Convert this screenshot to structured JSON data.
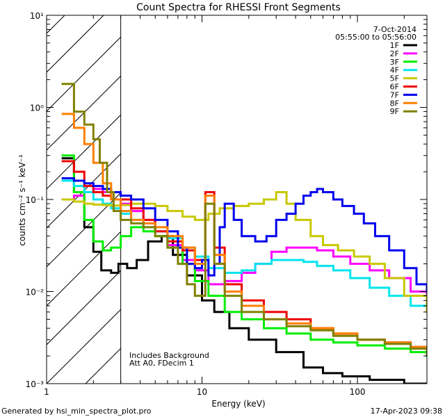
{
  "chart_data": {
    "type": "line",
    "title": "Count Spectra for RHESSI Front Segments",
    "xlabel": "Energy (keV)",
    "ylabel": "counts cm⁻² s⁻¹ keV⁻¹",
    "xscale": "log",
    "yscale": "log",
    "xlim": [
      1,
      280
    ],
    "ylim": [
      0.001,
      10
    ],
    "x_ticks": [
      {
        "value": 1,
        "label": "1"
      },
      {
        "value": 10,
        "label": "10"
      },
      {
        "value": 100,
        "label": "100"
      }
    ],
    "y_ticks": [
      {
        "value": 0.001,
        "label": "10⁻³"
      },
      {
        "value": 0.01,
        "label": "10⁻²"
      },
      {
        "value": 0.1,
        "label": "10⁻¹"
      },
      {
        "value": 1,
        "label": "10⁰"
      },
      {
        "value": 10,
        "label": "10¹"
      }
    ],
    "hatched_region_keV": [
      1,
      3
    ],
    "date": "7-Oct-2014",
    "time_range": "05:55:00 to 05:56:00",
    "annotation_lines": [
      "Includes Background",
      "Att A0, FDecim 1"
    ],
    "legend_position": "top-right",
    "series": [
      {
        "name": "1F",
        "color": "#000000",
        "points": [
          [
            1.25,
            0.28
          ],
          [
            1.5,
            0.12
          ],
          [
            1.75,
            0.05
          ],
          [
            2,
            0.027
          ],
          [
            2.25,
            0.017
          ],
          [
            2.6,
            0.016
          ],
          [
            2.9,
            0.02
          ],
          [
            3.3,
            0.018
          ],
          [
            3.8,
            0.022
          ],
          [
            4.5,
            0.035
          ],
          [
            5.5,
            0.04
          ],
          [
            6.5,
            0.025
          ],
          [
            8,
            0.015
          ],
          [
            10,
            0.008
          ],
          [
            12,
            0.006
          ],
          [
            15,
            0.004
          ],
          [
            20,
            0.003
          ],
          [
            30,
            0.0022
          ],
          [
            45,
            0.0015
          ],
          [
            60,
            0.0013
          ],
          [
            80,
            0.0012
          ],
          [
            120,
            0.0011
          ],
          [
            200,
            0.001
          ],
          [
            280,
            0.001
          ]
        ]
      },
      {
        "name": "2F",
        "color": "#ff00ff",
        "points": [
          [
            1.25,
            0.1
          ],
          [
            1.5,
            0.11
          ],
          [
            1.75,
            0.12
          ],
          [
            2,
            0.13
          ],
          [
            2.3,
            0.12
          ],
          [
            2.6,
            0.1
          ],
          [
            3,
            0.09
          ],
          [
            3.5,
            0.075
          ],
          [
            4.2,
            0.06
          ],
          [
            5,
            0.045
          ],
          [
            6,
            0.032
          ],
          [
            7.5,
            0.022
          ],
          [
            9,
            0.017
          ],
          [
            11,
            0.012
          ],
          [
            14,
            0.013
          ],
          [
            18,
            0.016
          ],
          [
            22,
            0.02
          ],
          [
            28,
            0.027
          ],
          [
            35,
            0.03
          ],
          [
            45,
            0.03
          ],
          [
            55,
            0.028
          ],
          [
            70,
            0.024
          ],
          [
            90,
            0.02
          ],
          [
            120,
            0.017
          ],
          [
            160,
            0.014
          ],
          [
            220,
            0.01
          ],
          [
            280,
            0.008
          ]
        ]
      },
      {
        "name": "3F",
        "color": "#00ee00",
        "points": [
          [
            1.25,
            0.3
          ],
          [
            1.5,
            0.12
          ],
          [
            1.75,
            0.06
          ],
          [
            2,
            0.035
          ],
          [
            2.3,
            0.028
          ],
          [
            2.6,
            0.03
          ],
          [
            3,
            0.04
          ],
          [
            3.5,
            0.05
          ],
          [
            4.2,
            0.045
          ],
          [
            5,
            0.04
          ],
          [
            6,
            0.03
          ],
          [
            7.5,
            0.02
          ],
          [
            9,
            0.013
          ],
          [
            11,
            0.009
          ],
          [
            14,
            0.006
          ],
          [
            18,
            0.005
          ],
          [
            25,
            0.004
          ],
          [
            35,
            0.0035
          ],
          [
            50,
            0.003
          ],
          [
            70,
            0.0028
          ],
          [
            100,
            0.0026
          ],
          [
            150,
            0.0024
          ],
          [
            220,
            0.0022
          ],
          [
            280,
            0.002
          ]
        ]
      },
      {
        "name": "4F",
        "color": "#00e5ee",
        "points": [
          [
            1.25,
            0.16
          ],
          [
            1.5,
            0.14
          ],
          [
            1.75,
            0.12
          ],
          [
            2,
            0.1
          ],
          [
            2.3,
            0.09
          ],
          [
            2.6,
            0.08
          ],
          [
            3,
            0.07
          ],
          [
            3.5,
            0.06
          ],
          [
            4.2,
            0.05
          ],
          [
            5,
            0.045
          ],
          [
            6,
            0.038
          ],
          [
            7.5,
            0.03
          ],
          [
            9,
            0.024
          ],
          [
            11,
            0.018
          ],
          [
            14,
            0.016
          ],
          [
            18,
            0.017
          ],
          [
            22,
            0.02
          ],
          [
            28,
            0.022
          ],
          [
            35,
            0.022
          ],
          [
            45,
            0.021
          ],
          [
            55,
            0.019
          ],
          [
            70,
            0.017
          ],
          [
            90,
            0.014
          ],
          [
            120,
            0.011
          ],
          [
            160,
            0.009
          ],
          [
            220,
            0.007
          ],
          [
            280,
            0.006
          ]
        ]
      },
      {
        "name": "5F",
        "color": "#c8c800",
        "points": [
          [
            1.25,
            0.1
          ],
          [
            1.5,
            0.095
          ],
          [
            1.75,
            0.09
          ],
          [
            2,
            0.088
          ],
          [
            2.3,
            0.087
          ],
          [
            2.6,
            0.086
          ],
          [
            3,
            0.087
          ],
          [
            3.5,
            0.09
          ],
          [
            4.2,
            0.09
          ],
          [
            5,
            0.085
          ],
          [
            6,
            0.075
          ],
          [
            7.5,
            0.065
          ],
          [
            9,
            0.06
          ],
          [
            11,
            0.07
          ],
          [
            13,
            0.08
          ],
          [
            16,
            0.085
          ],
          [
            20,
            0.09
          ],
          [
            25,
            0.1
          ],
          [
            30,
            0.12
          ],
          [
            35,
            0.09
          ],
          [
            40,
            0.06
          ],
          [
            50,
            0.04
          ],
          [
            60,
            0.032
          ],
          [
            75,
            0.028
          ],
          [
            95,
            0.024
          ],
          [
            120,
            0.02
          ],
          [
            150,
            0.014
          ],
          [
            200,
            0.009
          ],
          [
            280,
            0.006
          ]
        ]
      },
      {
        "name": "6F",
        "color": "#ee0000",
        "points": [
          [
            1.25,
            0.26
          ],
          [
            1.5,
            0.2
          ],
          [
            1.75,
            0.14
          ],
          [
            2,
            0.12
          ],
          [
            2.3,
            0.11
          ],
          [
            2.6,
            0.1
          ],
          [
            3,
            0.1
          ],
          [
            3.5,
            0.08
          ],
          [
            4.2,
            0.06
          ],
          [
            5,
            0.045
          ],
          [
            6,
            0.035
          ],
          [
            7.5,
            0.028
          ],
          [
            9,
            0.022
          ],
          [
            10.5,
            0.12
          ],
          [
            12,
            0.03
          ],
          [
            14,
            0.012
          ],
          [
            18,
            0.008
          ],
          [
            25,
            0.006
          ],
          [
            35,
            0.005
          ],
          [
            50,
            0.004
          ],
          [
            70,
            0.0035
          ],
          [
            100,
            0.003
          ],
          [
            150,
            0.0028
          ],
          [
            220,
            0.0025
          ],
          [
            280,
            0.0022
          ]
        ]
      },
      {
        "name": "7F",
        "color": "#0000ee",
        "points": [
          [
            1.25,
            0.17
          ],
          [
            1.5,
            0.16
          ],
          [
            1.75,
            0.15
          ],
          [
            2,
            0.14
          ],
          [
            2.3,
            0.13
          ],
          [
            2.6,
            0.12
          ],
          [
            3,
            0.11
          ],
          [
            3.5,
            0.1
          ],
          [
            4.2,
            0.08
          ],
          [
            5,
            0.06
          ],
          [
            6,
            0.045
          ],
          [
            7,
            0.03
          ],
          [
            8,
            0.02
          ],
          [
            9,
            0.018
          ],
          [
            10,
            0.022
          ],
          [
            11,
            0.015
          ],
          [
            12,
            0.02
          ],
          [
            13,
            0.05
          ],
          [
            14,
            0.09
          ],
          [
            16,
            0.06
          ],
          [
            18,
            0.04
          ],
          [
            22,
            0.035
          ],
          [
            26,
            0.04
          ],
          [
            30,
            0.06
          ],
          [
            35,
            0.07
          ],
          [
            40,
            0.09
          ],
          [
            45,
            0.11
          ],
          [
            50,
            0.12
          ],
          [
            55,
            0.13
          ],
          [
            60,
            0.12
          ],
          [
            70,
            0.1
          ],
          [
            80,
            0.085
          ],
          [
            95,
            0.07
          ],
          [
            110,
            0.055
          ],
          [
            130,
            0.04
          ],
          [
            160,
            0.028
          ],
          [
            200,
            0.018
          ],
          [
            240,
            0.012
          ],
          [
            280,
            0.01
          ]
        ]
      },
      {
        "name": "8F",
        "color": "#ff7f00",
        "points": [
          [
            1.25,
            0.85
          ],
          [
            1.5,
            0.6
          ],
          [
            1.75,
            0.4
          ],
          [
            2,
            0.25
          ],
          [
            2.3,
            0.15
          ],
          [
            2.6,
            0.1
          ],
          [
            3,
            0.075
          ],
          [
            3.5,
            0.06
          ],
          [
            4.2,
            0.055
          ],
          [
            5,
            0.05
          ],
          [
            6,
            0.04
          ],
          [
            7.5,
            0.03
          ],
          [
            9,
            0.02
          ],
          [
            10.5,
            0.11
          ],
          [
            12,
            0.025
          ],
          [
            14,
            0.01
          ],
          [
            18,
            0.007
          ],
          [
            25,
            0.005
          ],
          [
            35,
            0.0045
          ],
          [
            50,
            0.004
          ],
          [
            70,
            0.0035
          ],
          [
            100,
            0.003
          ],
          [
            150,
            0.0028
          ],
          [
            220,
            0.0025
          ],
          [
            280,
            0.0022
          ]
        ]
      },
      {
        "name": "9F",
        "color": "#808000",
        "points": [
          [
            1.25,
            1.8
          ],
          [
            1.5,
            0.9
          ],
          [
            1.75,
            0.65
          ],
          [
            2,
            0.45
          ],
          [
            2.2,
            0.25
          ],
          [
            2.45,
            0.12
          ],
          [
            2.7,
            0.075
          ],
          [
            3,
            0.06
          ],
          [
            3.5,
            0.055
          ],
          [
            4.2,
            0.05
          ],
          [
            5,
            0.04
          ],
          [
            6,
            0.03
          ],
          [
            7,
            0.02
          ],
          [
            8,
            0.012
          ],
          [
            9,
            0.009
          ],
          [
            10.5,
            0.09
          ],
          [
            12,
            0.02
          ],
          [
            14,
            0.009
          ],
          [
            18,
            0.006
          ],
          [
            25,
            0.005
          ],
          [
            35,
            0.0042
          ],
          [
            50,
            0.0038
          ],
          [
            70,
            0.0033
          ],
          [
            100,
            0.003
          ],
          [
            150,
            0.0027
          ],
          [
            220,
            0.0024
          ],
          [
            280,
            0.0021
          ]
        ]
      }
    ]
  },
  "footer": {
    "generated_by": "Generated by hsi_min_spectra_plot.pro",
    "timestamp": "17-Apr-2023 09:38"
  }
}
